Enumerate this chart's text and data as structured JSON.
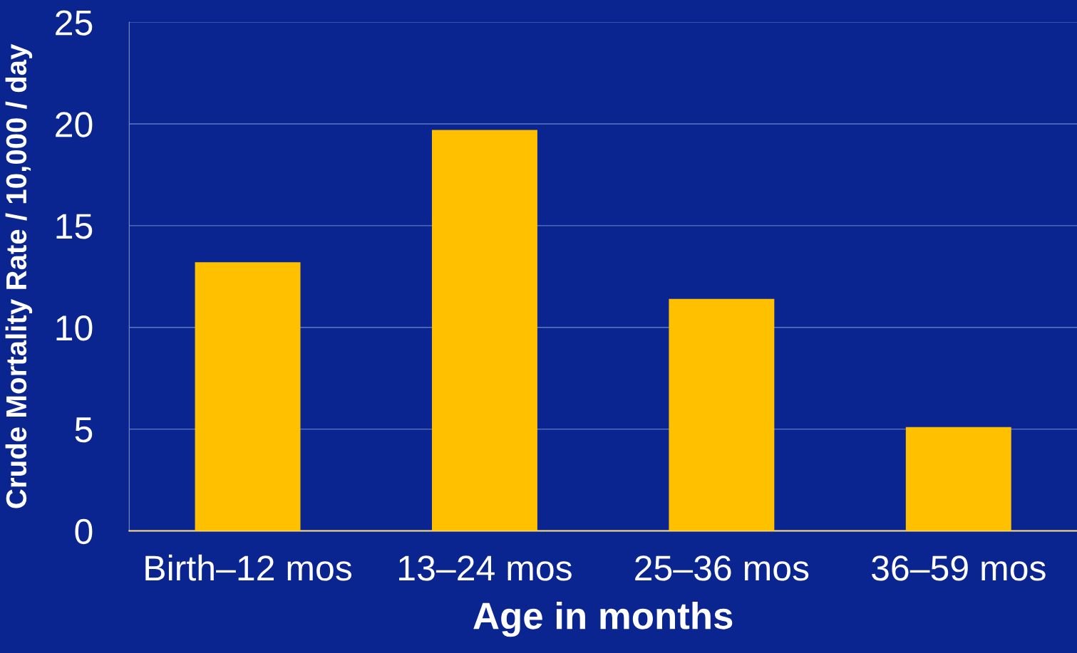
{
  "chart_data": {
    "type": "bar",
    "xlabel": "Age in months",
    "ylabel": "Crude Mortality Rate / 10,000 / day",
    "categories": [
      "Birth–12 mos",
      "13–24 mos",
      "25–36 mos",
      "36–59 mos"
    ],
    "values": [
      13.2,
      19.7,
      11.4,
      5.1
    ],
    "color": "#ffc000",
    "ylim": [
      0,
      25
    ],
    "yticks": [
      0,
      5,
      10,
      15,
      20,
      25
    ],
    "grid": "y"
  }
}
